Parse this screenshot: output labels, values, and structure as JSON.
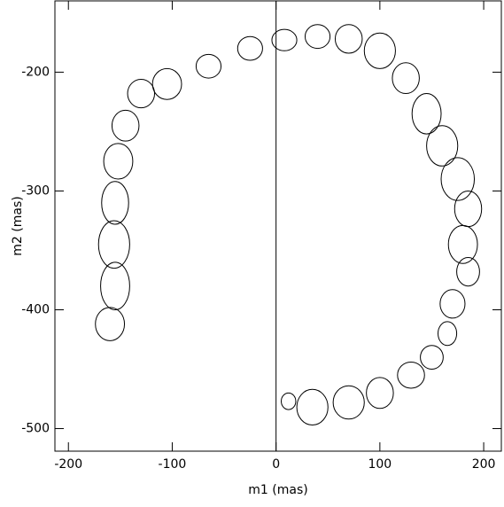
{
  "chart_data": {
    "type": "ellipse",
    "x_label": "m1 (mas)",
    "y_label": "m2 (mas)",
    "x": [
      -160,
      -155,
      -156,
      -155,
      -152,
      -145,
      -130,
      -105,
      -65,
      -25,
      8,
      40,
      70,
      100,
      125,
      145,
      160,
      175,
      185,
      180,
      185,
      170,
      165,
      150,
      130,
      100,
      70,
      35,
      12
    ],
    "values": [
      -412,
      -380,
      -345,
      -310,
      -275,
      -245,
      -218,
      -210,
      -195,
      -180,
      -173,
      -170,
      -172,
      -182,
      -205,
      -235,
      -262,
      -290,
      -315,
      -345,
      -368,
      -395,
      -420,
      -440,
      -455,
      -470,
      -478,
      -482,
      -477
    ],
    "rx": [
      14,
      14,
      15,
      13,
      14,
      13,
      13,
      14,
      12,
      12,
      12,
      12,
      13,
      15,
      13,
      14,
      15,
      16,
      13,
      14,
      11,
      12,
      9,
      11,
      13,
      13,
      15,
      15,
      7
    ],
    "ry": [
      14,
      20,
      20,
      18,
      15,
      13,
      12,
      13,
      10,
      10,
      9,
      10,
      12,
      15,
      13,
      17,
      17,
      18,
      15,
      16,
      12,
      12,
      10,
      10,
      11,
      13,
      14,
      15,
      7
    ],
    "color": "#000000",
    "vline": 0,
    "xlim": [
      -213,
      217
    ],
    "ylim": [
      -519,
      -140
    ],
    "xticks": [
      -200,
      -100,
      0,
      100,
      200
    ],
    "yticks": [
      -500,
      -400,
      -300,
      -200
    ]
  }
}
